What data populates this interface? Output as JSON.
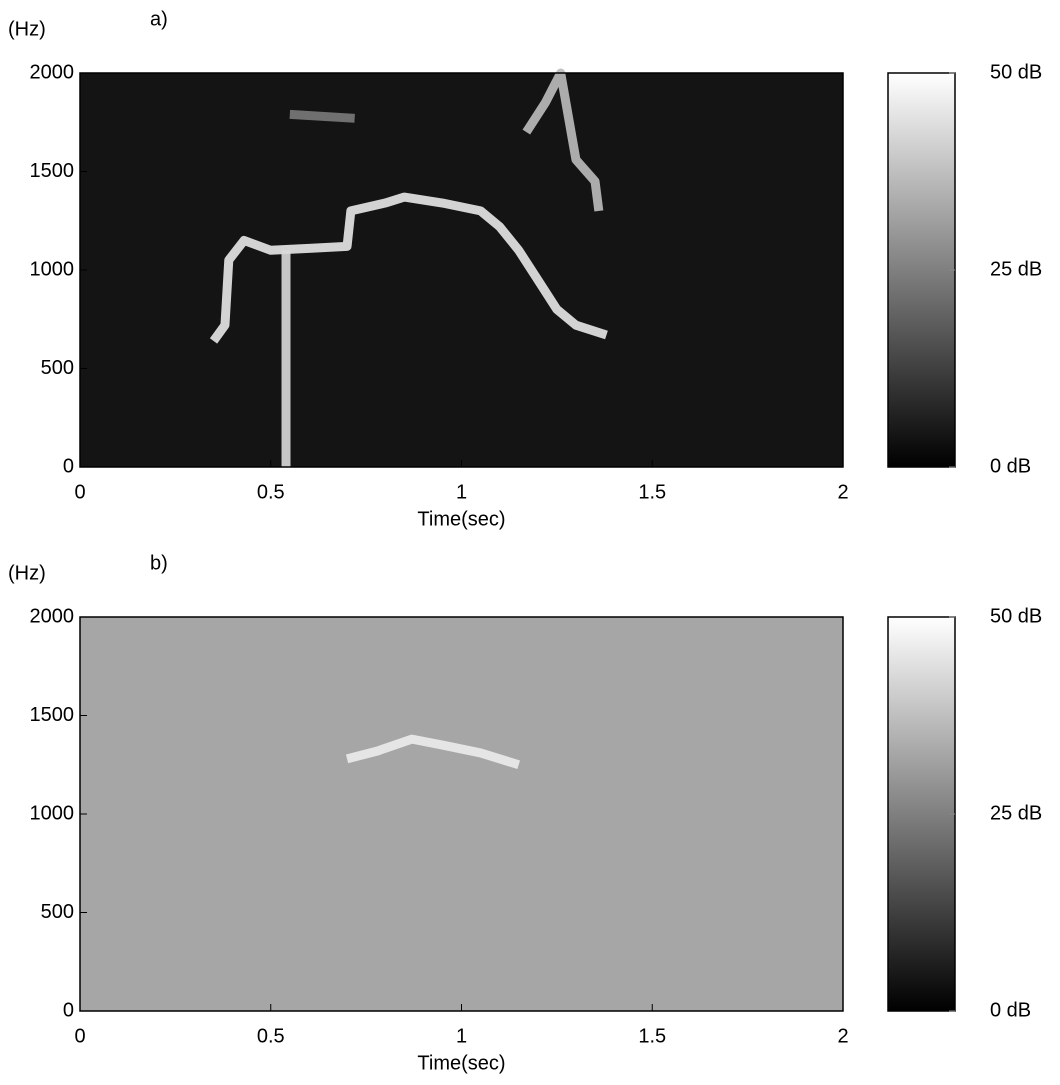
{
  "chart_data": [
    {
      "type": "line",
      "panel_label": "a)",
      "ylabel": "(Hz)",
      "xlabel": "Time(sec)",
      "background": "#141414",
      "xlim": [
        0,
        2
      ],
      "xticks": [
        0,
        0.5,
        1,
        1.5,
        2
      ],
      "ylim": [
        0,
        2000
      ],
      "yticks": [
        0,
        500,
        1000,
        1500,
        2000
      ],
      "series": [
        {
          "color": "#e8e8e8",
          "x": [
            0.35,
            0.38,
            0.39,
            0.43,
            0.5,
            0.6,
            0.7,
            0.71,
            0.8,
            0.85,
            0.95,
            1.05,
            1.1,
            1.15,
            1.2,
            1.25,
            1.3,
            1.38
          ],
          "values": [
            640,
            720,
            1050,
            1150,
            1100,
            1110,
            1120,
            1300,
            1340,
            1370,
            1340,
            1300,
            1220,
            1100,
            950,
            800,
            720,
            670
          ]
        },
        {
          "color": "#d9d9d9",
          "x": [
            0.54,
            0.54
          ],
          "values": [
            0,
            1100
          ]
        },
        {
          "color": "#bdbdbd",
          "x": [
            1.17,
            1.22,
            1.26,
            1.3,
            1.35,
            1.36
          ],
          "values": [
            1700,
            1850,
            2000,
            1560,
            1450,
            1300
          ]
        },
        {
          "color": "#7a7a7a",
          "x": [
            0.55,
            0.72
          ],
          "values": [
            1790,
            1770
          ]
        }
      ],
      "colorbar": {
        "clim": [
          0,
          50
        ],
        "colors": [
          "#000000",
          "#ffffff"
        ],
        "ticks": [
          {
            "value": 0,
            "label": "0 dB"
          },
          {
            "value": 25,
            "label": "25 dB"
          },
          {
            "value": 50,
            "label": "50 dB"
          }
        ]
      }
    },
    {
      "type": "line",
      "panel_label": "b)",
      "ylabel": "(Hz)",
      "xlabel": "Time(sec)",
      "background": "#a6a6a6",
      "xlim": [
        0,
        2
      ],
      "xticks": [
        0,
        0.5,
        1,
        1.5,
        2
      ],
      "ylim": [
        0,
        2000
      ],
      "yticks": [
        0,
        500,
        1000,
        1500,
        2000
      ],
      "series": [
        {
          "color": "#ececec",
          "x": [
            0.7,
            0.78,
            0.87,
            0.95,
            1.05,
            1.15
          ],
          "values": [
            1280,
            1320,
            1380,
            1350,
            1310,
            1250
          ]
        }
      ],
      "colorbar": {
        "clim": [
          0,
          50
        ],
        "colors": [
          "#000000",
          "#ffffff"
        ],
        "ticks": [
          {
            "value": 0,
            "label": "0 dB"
          },
          {
            "value": 25,
            "label": "25 dB"
          },
          {
            "value": 50,
            "label": "50 dB"
          }
        ]
      }
    }
  ]
}
